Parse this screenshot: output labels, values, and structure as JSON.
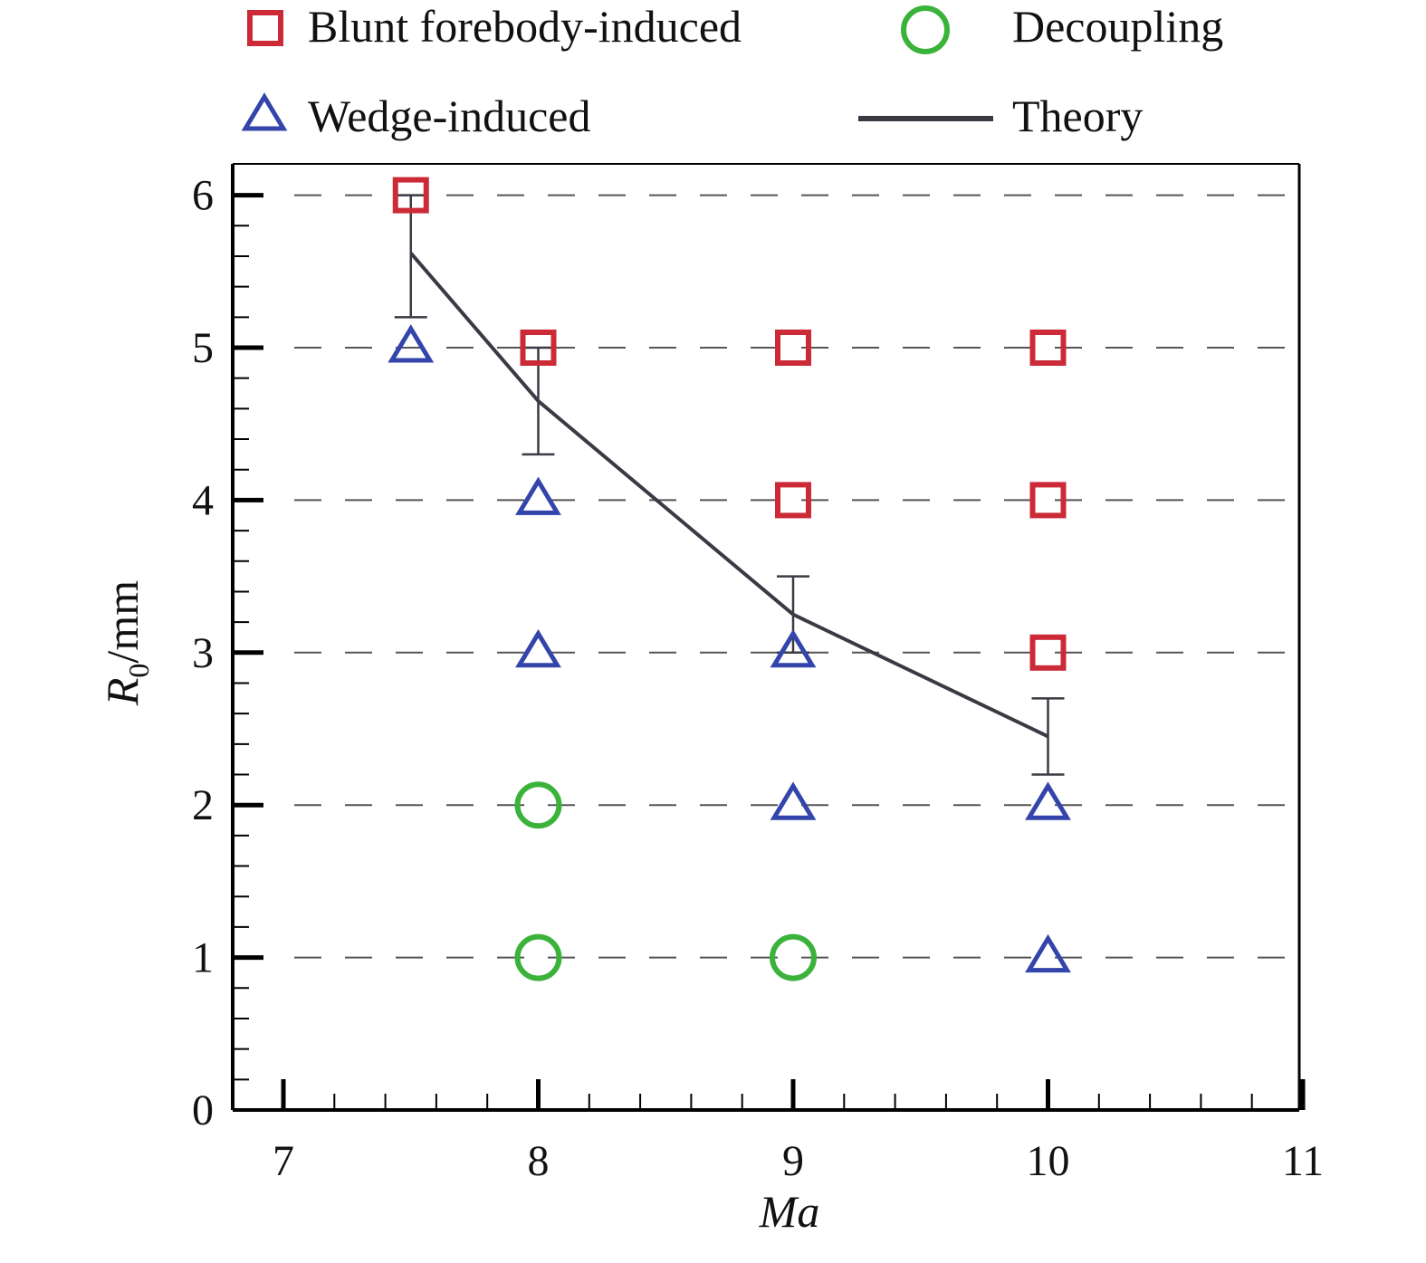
{
  "chart_data": {
    "type": "scatter",
    "xlabel": "Ma",
    "ylabel_main": "R",
    "ylabel_sub": "0",
    "ylabel_unit": "/mm",
    "xlim": [
      6.85,
      11
    ],
    "ylim": [
      0,
      6.2
    ],
    "x_ticks": [
      7,
      8,
      9,
      10,
      11
    ],
    "y_ticks": [
      0,
      1,
      2,
      3,
      4,
      5,
      6
    ],
    "grid": "horizontal dashed",
    "legend_position": "top, outside plot",
    "legend": [
      {
        "label": "Blunt forebody-induced",
        "marker": "square",
        "color": "#cc2a36"
      },
      {
        "label": "Decoupling",
        "marker": "circle",
        "color": "#3bb33b"
      },
      {
        "label": "Wedge-induced",
        "marker": "triangle",
        "color": "#3344aa"
      },
      {
        "label": "Theory",
        "marker": "line",
        "color": "#3a3a44"
      }
    ],
    "series": [
      {
        "name": "Blunt forebody-induced",
        "marker": "square",
        "color": "#cc2a36",
        "points": [
          [
            7.5,
            6
          ],
          [
            8,
            5
          ],
          [
            9,
            5
          ],
          [
            9,
            4
          ],
          [
            10,
            5
          ],
          [
            10,
            4
          ],
          [
            10,
            3
          ]
        ]
      },
      {
        "name": "Wedge-induced",
        "marker": "triangle",
        "color": "#3344aa",
        "points": [
          [
            7.5,
            5
          ],
          [
            8,
            4
          ],
          [
            8,
            3
          ],
          [
            9,
            3
          ],
          [
            9,
            2
          ],
          [
            10,
            2
          ],
          [
            10,
            1
          ]
        ]
      },
      {
        "name": "Decoupling",
        "marker": "circle",
        "color": "#3bb33b",
        "points": [
          [
            8,
            2
          ],
          [
            8,
            1
          ],
          [
            9,
            1
          ]
        ]
      },
      {
        "name": "Theory",
        "type": "line",
        "color": "#3a3a44",
        "points": [
          [
            7.5,
            5.62
          ],
          [
            8,
            4.65
          ],
          [
            9,
            3.25
          ],
          [
            10,
            2.45
          ]
        ],
        "error_bars": [
          [
            7.5,
            5.2,
            6.0
          ],
          [
            8,
            4.3,
            5.0
          ],
          [
            9,
            3.0,
            3.5
          ],
          [
            10,
            2.2,
            2.7
          ]
        ]
      }
    ]
  }
}
